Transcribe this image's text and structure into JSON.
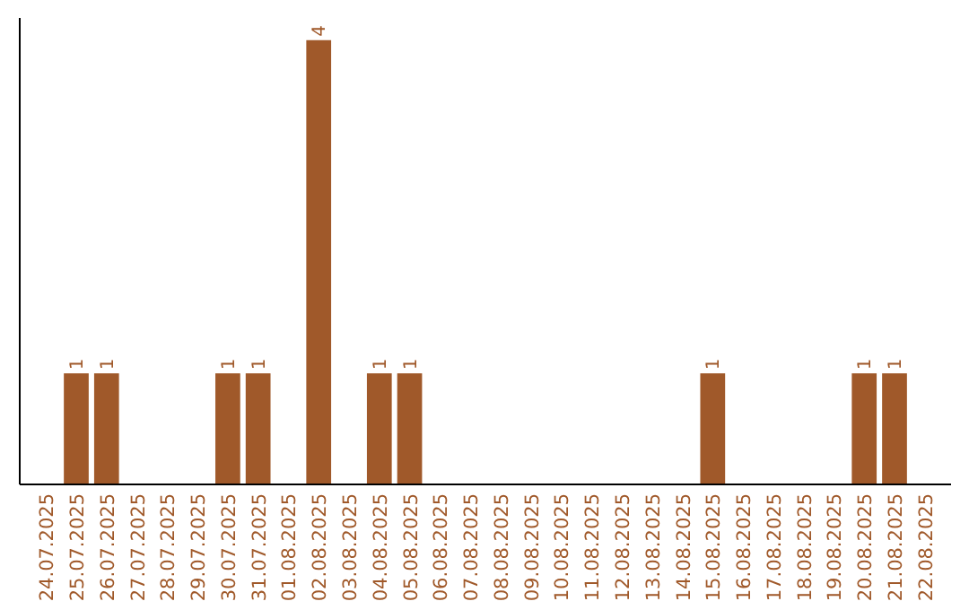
{
  "chart_data": {
    "type": "bar",
    "categories": [
      "24.07.2025",
      "25.07.2025",
      "26.07.2025",
      "27.07.2025",
      "28.07.2025",
      "29.07.2025",
      "30.07.2025",
      "31.07.2025",
      "01.08.2025",
      "02.08.2025",
      "03.08.2025",
      "04.08.2025",
      "05.08.2025",
      "06.08.2025",
      "07.08.2025",
      "08.08.2025",
      "09.08.2025",
      "10.08.2025",
      "11.08.2025",
      "12.08.2025",
      "13.08.2025",
      "14.08.2025",
      "15.08.2025",
      "16.08.2025",
      "17.08.2025",
      "18.08.2025",
      "19.08.2025",
      "20.08.2025",
      "21.08.2025",
      "22.08.2025"
    ],
    "values": [
      null,
      1,
      1,
      null,
      null,
      null,
      1,
      1,
      null,
      4,
      null,
      1,
      1,
      null,
      null,
      null,
      null,
      null,
      null,
      null,
      null,
      null,
      1,
      null,
      null,
      null,
      null,
      1,
      1,
      null
    ],
    "color": "#a0592a",
    "ylim": [
      0,
      4.2
    ],
    "data_labels": true,
    "tick_labels": "x"
  }
}
